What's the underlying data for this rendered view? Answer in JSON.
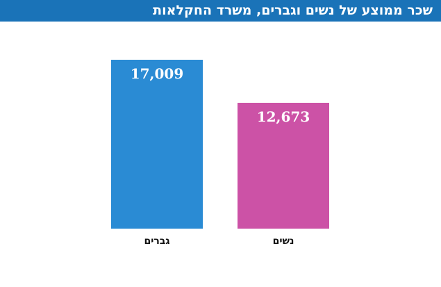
{
  "header": {
    "title": "שכר ממוצע של נשים וגברים, משרד החקלאות"
  },
  "colors": {
    "header_bg": "#1a73b8",
    "men": "#2a8bd4",
    "women": "#cc52a6"
  },
  "chart_data": {
    "type": "bar",
    "categories": [
      "גברים",
      "נשים"
    ],
    "values": [
      17009,
      12673
    ],
    "value_labels": [
      "17,009",
      "12,673"
    ],
    "colors": [
      "#2a8bd4",
      "#cc52a6"
    ],
    "title": "שכר ממוצע של נשים וגברים, משרד החקלאות",
    "xlabel": "",
    "ylabel": "",
    "ylim": [
      0,
      18200
    ],
    "grid": false,
    "legend": "none"
  }
}
